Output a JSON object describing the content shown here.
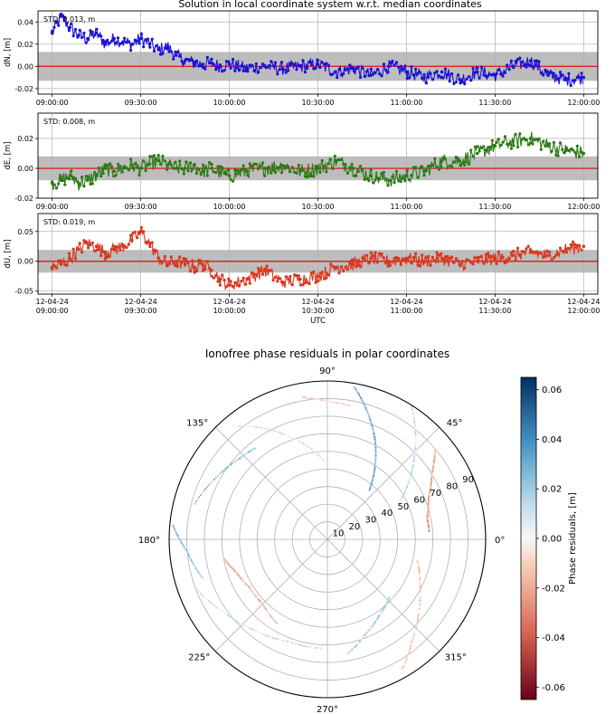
{
  "figure": {
    "top_title": "Solution in local coordinate system w.r.t. median coordinates",
    "bottom_title": "Ionofree phase residuals in polar coordinates"
  },
  "colors": {
    "dN": "#1a12d6",
    "dE": "#2c7a17",
    "dU": "#d9361e",
    "band": "#bdbdbd",
    "zero_line": "#e02020",
    "grid": "#b0b0b0"
  },
  "chart_data": [
    {
      "type": "line",
      "title": "",
      "xlabel": "",
      "ylabel": "dN, [m]",
      "annotation": "STD: 0.013, m",
      "std": 0.013,
      "ylim": [
        -0.025,
        0.05
      ],
      "yticks": [
        "0.04",
        "0.02",
        "0.00",
        "-0.02"
      ],
      "ytick_values": [
        0.04,
        0.02,
        0.0,
        -0.02
      ],
      "xticks": [
        "09:00:00",
        "09:30:00",
        "10:00:00",
        "10:30:00",
        "11:00:00",
        "11:30:00",
        "12:00:00"
      ],
      "xlim_hours": [
        8.92,
        12.08
      ],
      "series": [
        {
          "x_hours": [
            9.0,
            9.05,
            9.1,
            9.15,
            9.2,
            9.25,
            9.3,
            9.35,
            9.4,
            9.45,
            9.5,
            9.55,
            9.6,
            9.65,
            9.7,
            9.75,
            9.8,
            9.85,
            9.9,
            9.95,
            10.0,
            10.1,
            10.2,
            10.3,
            10.4,
            10.5,
            10.6,
            10.7,
            10.8,
            10.9,
            11.0,
            11.1,
            11.2,
            11.3,
            11.4,
            11.5,
            11.6,
            11.7,
            11.8,
            11.9,
            12.0
          ],
          "y": [
            0.03,
            0.045,
            0.035,
            0.028,
            0.025,
            0.03,
            0.02,
            0.025,
            0.022,
            0.02,
            0.025,
            0.02,
            0.015,
            0.018,
            0.01,
            0.005,
            0.003,
            0.002,
            0.003,
            0.0,
            0.002,
            -0.002,
            0.0,
            -0.002,
            0.0,
            0.002,
            -0.005,
            -0.002,
            -0.008,
            0.0,
            -0.005,
            -0.01,
            -0.005,
            -0.012,
            -0.005,
            -0.008,
            0.0,
            0.005,
            -0.008,
            -0.012,
            -0.01
          ]
        }
      ]
    },
    {
      "type": "line",
      "title": "",
      "xlabel": "",
      "ylabel": "dE, [m]",
      "annotation": "STD: 0.008, m",
      "std": 0.008,
      "ylim": [
        -0.02,
        0.037
      ],
      "yticks": [
        "0.02",
        "0.00",
        "-0.02"
      ],
      "ytick_values": [
        0.02,
        0.0,
        -0.02
      ],
      "xticks": [
        "09:00:00",
        "09:30:00",
        "10:00:00",
        "10:30:00",
        "11:00:00",
        "11:30:00",
        "12:00:00"
      ],
      "xlim_hours": [
        8.92,
        12.08
      ],
      "series": [
        {
          "x_hours": [
            9.0,
            9.05,
            9.1,
            9.15,
            9.2,
            9.25,
            9.3,
            9.35,
            9.4,
            9.45,
            9.5,
            9.55,
            9.6,
            9.65,
            9.7,
            9.75,
            9.8,
            9.85,
            9.9,
            9.95,
            10.0,
            10.1,
            10.2,
            10.3,
            10.4,
            10.5,
            10.6,
            10.7,
            10.8,
            10.9,
            11.0,
            11.1,
            11.2,
            11.3,
            11.4,
            11.5,
            11.6,
            11.7,
            11.8,
            11.9,
            12.0
          ],
          "y": [
            -0.01,
            -0.008,
            -0.005,
            -0.01,
            -0.008,
            -0.005,
            0.0,
            -0.002,
            0.0,
            0.002,
            0.0,
            0.003,
            0.005,
            0.002,
            0.0,
            0.0,
            0.002,
            -0.002,
            0.0,
            -0.003,
            -0.005,
            -0.002,
            0.0,
            0.002,
            -0.002,
            0.0,
            0.005,
            0.0,
            -0.005,
            -0.008,
            -0.005,
            -0.002,
            0.005,
            0.005,
            0.01,
            0.015,
            0.018,
            0.02,
            0.015,
            0.012,
            0.01
          ]
        }
      ]
    },
    {
      "type": "line",
      "title": "",
      "xlabel": "UTC",
      "ylabel": "dU, [m]",
      "annotation": "STD: 0.019, m",
      "std": 0.019,
      "ylim": [
        -0.055,
        0.08
      ],
      "yticks": [
        "0.05",
        "0.00",
        "-0.05"
      ],
      "ytick_values": [
        0.05,
        0.0,
        -0.05
      ],
      "xticks_line1": [
        "12-04-24",
        "12-04-24",
        "12-04-24",
        "12-04-24",
        "12-04-24",
        "12-04-24",
        "12-04-24"
      ],
      "xticks": [
        "09:00:00",
        "09:30:00",
        "10:00:00",
        "10:30:00",
        "11:00:00",
        "11:30:00",
        "12:00:00"
      ],
      "xlim_hours": [
        8.92,
        12.08
      ],
      "series": [
        {
          "x_hours": [
            9.0,
            9.05,
            9.1,
            9.15,
            9.2,
            9.25,
            9.3,
            9.35,
            9.4,
            9.45,
            9.5,
            9.55,
            9.6,
            9.65,
            9.7,
            9.75,
            9.8,
            9.85,
            9.9,
            9.95,
            10.0,
            10.1,
            10.2,
            10.3,
            10.4,
            10.5,
            10.6,
            10.7,
            10.8,
            10.9,
            11.0,
            11.1,
            11.2,
            11.3,
            11.4,
            11.5,
            11.6,
            11.7,
            11.8,
            11.9,
            12.0
          ],
          "y": [
            -0.01,
            -0.005,
            0.005,
            0.02,
            0.03,
            0.025,
            0.015,
            0.02,
            0.025,
            0.035,
            0.05,
            0.03,
            0.005,
            -0.005,
            0.0,
            -0.005,
            -0.01,
            -0.005,
            -0.015,
            -0.03,
            -0.04,
            -0.03,
            -0.015,
            -0.035,
            -0.03,
            -0.025,
            -0.01,
            -0.005,
            0.005,
            0.0,
            0.005,
            0.0,
            0.005,
            -0.005,
            0.0,
            0.005,
            0.01,
            0.015,
            0.01,
            0.02,
            0.025
          ]
        }
      ]
    },
    {
      "type": "scatter",
      "subtype": "polar",
      "title": "Ionofree phase residuals in polar coordinates",
      "angle_labels": [
        "0°",
        "45°",
        "90°",
        "135°",
        "180°",
        "225°",
        "270°",
        "315°"
      ],
      "angle_values": [
        0,
        45,
        90,
        135,
        180,
        225,
        270,
        315
      ],
      "radial_labels": [
        "10",
        "20",
        "30",
        "40",
        "50",
        "60",
        "70",
        "80",
        "90"
      ],
      "radial_values": [
        10,
        20,
        30,
        40,
        50,
        60,
        70,
        80,
        90
      ],
      "colorbar_label": "Phase residuals, [m]",
      "colorbar_ticks": [
        "0.06",
        "0.04",
        "0.02",
        "0.00",
        "-0.02",
        "-0.04",
        "-0.06"
      ],
      "colorbar_values": [
        0.06,
        0.04,
        0.02,
        0.0,
        -0.02,
        -0.04,
        -0.06
      ],
      "colorbar_range": [
        -0.065,
        0.065
      ],
      "tracks": [
        {
          "azimuth": [
            80,
            72,
            64,
            56,
            49
          ],
          "zenith": [
            88,
            75,
            62,
            48,
            36
          ],
          "residual": 0.03
        },
        {
          "azimuth": [
            58,
            50,
            42,
            34,
            27
          ],
          "zenith": [
            90,
            78,
            66,
            55,
            46
          ],
          "residual": 0.01
        },
        {
          "azimuth": [
            40,
            32,
            22,
            12,
            4
          ],
          "zenith": [
            80,
            70,
            62,
            58,
            58
          ],
          "residual": -0.02
        },
        {
          "azimuth": [
            130,
            120,
            110,
            100,
            92
          ],
          "zenith": [
            84,
            73,
            62,
            52,
            44
          ],
          "residual": 0.005
        },
        {
          "azimuth": [
            165,
            150,
            138,
            128
          ],
          "zenith": [
            78,
            72,
            68,
            66
          ],
          "residual": 0.02
        },
        {
          "azimuth": [
            190,
            200,
            212,
            225,
            240
          ],
          "zenith": [
            60,
            55,
            52,
            52,
            56
          ],
          "residual": -0.015
        },
        {
          "azimuth": [
            200,
            215,
            232,
            250,
            268
          ],
          "zenith": [
            80,
            72,
            66,
            62,
            62
          ],
          "residual": 0.01
        },
        {
          "azimuth": [
            300,
            310,
            322,
            335,
            348
          ],
          "zenith": [
            85,
            75,
            66,
            58,
            52
          ],
          "residual": -0.01
        },
        {
          "azimuth": [
            280,
            292,
            305,
            318
          ],
          "zenith": [
            66,
            58,
            52,
            48
          ],
          "residual": 0.015
        },
        {
          "azimuth": [
            175,
            185,
            198
          ],
          "zenith": [
            88,
            80,
            74
          ],
          "residual": 0.025
        },
        {
          "azimuth": [
            100,
            95,
            88,
            80
          ],
          "zenith": [
            82,
            80,
            78,
            77
          ],
          "residual": -0.005
        }
      ]
    }
  ]
}
